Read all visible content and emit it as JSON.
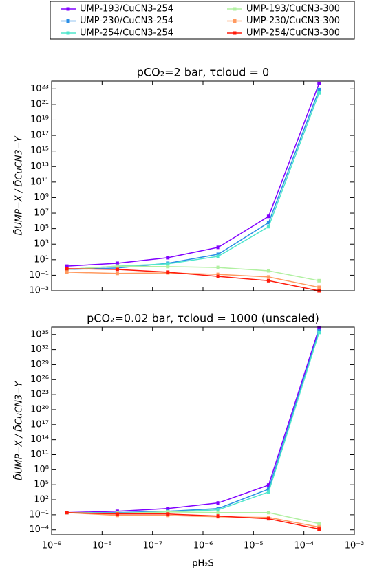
{
  "chart_data": [
    {
      "type": "line",
      "title": "pCO₂=2 bar, τcloud = 0",
      "ylabel": "D̄UMP−X / D̄CuCN3−Y",
      "log_x": true,
      "log_y": true,
      "x": [
        2e-09,
        2e-08,
        2e-07,
        2e-06,
        2e-05,
        0.0002
      ],
      "xlim": [
        1e-09,
        0.001
      ],
      "xticks": [
        1e-09,
        1e-08,
        1e-07,
        1e-06,
        1e-05,
        0.0001,
        0.001
      ],
      "ylim": [
        0.001,
        1e+24
      ],
      "yticks": [
        {
          "value": 0.001,
          "label": "10⁻³"
        },
        {
          "value": 0.1,
          "label": "10⁻¹"
        },
        {
          "value": 10,
          "label": "10¹"
        },
        {
          "value": 1000,
          "label": "10³"
        },
        {
          "value": 100000.0,
          "label": "10⁵"
        },
        {
          "value": 10000000.0,
          "label": "10⁷"
        },
        {
          "value": 1000000000.0,
          "label": "10⁹"
        },
        {
          "value": 100000000000.0,
          "label": "10¹¹"
        },
        {
          "value": 10000000000000.0,
          "label": "10¹³"
        },
        {
          "value": 1000000000000000.0,
          "label": "10¹⁵"
        },
        {
          "value": 1e+17,
          "label": "10¹⁷"
        },
        {
          "value": 1e+19,
          "label": "10¹⁹"
        },
        {
          "value": 1e+21,
          "label": "10²¹"
        },
        {
          "value": 1e+23,
          "label": "10²³"
        }
      ],
      "series": [
        {
          "name": "UMP-193/CuCN3-254",
          "color": "#8000ff",
          "values": [
            1.5,
            3.5,
            18,
            390,
            3800000.0,
            5e+23
          ]
        },
        {
          "name": "UMP-230/CuCN3-254",
          "color": "#2a8ee6",
          "values": [
            0.56,
            0.85,
            3.5,
            50,
            600000.0,
            8e+22
          ]
        },
        {
          "name": "UMP-254/CuCN3-254",
          "color": "#4ee6cc",
          "values": [
            0.56,
            1.5,
            2.9,
            27,
            180000.0,
            3e+22
          ]
        },
        {
          "name": "UMP-193/CuCN3-300",
          "color": "#b0f0a0",
          "values": [
            0.56,
            1.5,
            1.3,
            1.0,
            0.37,
            0.02
          ]
        },
        {
          "name": "UMP-230/CuCN3-300",
          "color": "#ff9a60",
          "values": [
            0.25,
            0.17,
            0.2,
            0.13,
            0.06,
            0.0028
          ]
        },
        {
          "name": "UMP-254/CuCN3-300",
          "color": "#ff1a0a",
          "values": [
            0.7,
            0.56,
            0.25,
            0.07,
            0.02,
            0.001
          ]
        }
      ]
    },
    {
      "type": "line",
      "title": "pCO₂=0.02 bar, τcloud = 1000 (unscaled)",
      "ylabel": "D̄UMP−X / D̄CuCN3−Y",
      "xlabel": "pH₂S",
      "log_x": true,
      "log_y": true,
      "x": [
        2e-09,
        2e-08,
        2e-07,
        2e-06,
        2e-05,
        0.0002
      ],
      "xlim": [
        1e-09,
        0.001
      ],
      "xticks": [
        {
          "value": 1e-09,
          "label": "10⁻⁹"
        },
        {
          "value": 1e-08,
          "label": "10⁻⁸"
        },
        {
          "value": 1e-07,
          "label": "10⁻⁷"
        },
        {
          "value": 1e-06,
          "label": "10⁻⁶"
        },
        {
          "value": 1e-05,
          "label": "10⁻⁵"
        },
        {
          "value": 0.0001,
          "label": "10⁻⁴"
        },
        {
          "value": 0.001,
          "label": "10⁻³"
        }
      ],
      "ylim": [
        1e-05,
        3e+36
      ],
      "yticks": [
        {
          "value": 0.0001,
          "label": "10⁻⁴"
        },
        {
          "value": 0.1,
          "label": "10⁻¹"
        },
        {
          "value": 100,
          "label": "10²"
        },
        {
          "value": 100000.0,
          "label": "10⁵"
        },
        {
          "value": 100000000.0,
          "label": "10⁸"
        },
        {
          "value": 100000000000.0,
          "label": "10¹¹"
        },
        {
          "value": 100000000000000.0,
          "label": "10¹⁴"
        },
        {
          "value": 1e+17,
          "label": "10¹⁷"
        },
        {
          "value": 1e+20,
          "label": "10²⁰"
        },
        {
          "value": 1e+23,
          "label": "10²³"
        },
        {
          "value": 1e+26,
          "label": "10²⁶"
        },
        {
          "value": 1e+29,
          "label": "10²⁹"
        },
        {
          "value": 1e+32,
          "label": "10³²"
        },
        {
          "value": 1e+35,
          "label": "10³⁵"
        }
      ],
      "series": [
        {
          "name": "UMP-193/CuCN3-254",
          "color": "#8000ff",
          "values": [
            0.27,
            0.5,
            1.8,
            23,
            85000.0,
            2e+36
          ]
        },
        {
          "name": "UMP-230/CuCN3-254",
          "color": "#2a8ee6",
          "values": [
            0.27,
            0.27,
            0.5,
            1.8,
            13000.0,
            6e+35
          ]
        },
        {
          "name": "UMP-254/CuCN3-254",
          "color": "#4ee6cc",
          "values": [
            0.27,
            0.2,
            0.37,
            1.0,
            3500,
            2.5e+35
          ]
        },
        {
          "name": "UMP-193/CuCN3-300",
          "color": "#b0f0a0",
          "values": [
            0.27,
            0.2,
            0.37,
            0.27,
            0.27,
            0.0017
          ]
        },
        {
          "name": "UMP-230/CuCN3-300",
          "color": "#ff9a60",
          "values": [
            0.27,
            0.075,
            0.075,
            0.04,
            0.03,
            0.00035
          ]
        },
        {
          "name": "UMP-254/CuCN3-300",
          "color": "#ff1a0a",
          "values": [
            0.27,
            0.14,
            0.14,
            0.056,
            0.016,
            0.00014
          ]
        }
      ]
    }
  ]
}
